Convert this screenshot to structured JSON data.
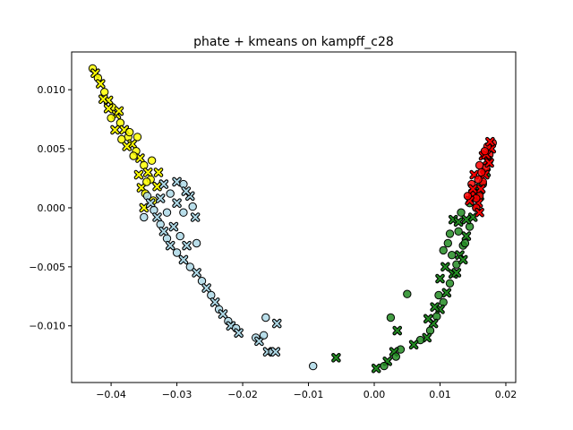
{
  "chart_data": {
    "type": "scatter",
    "title": "phate + kmeans on kampff_c28",
    "xlabel": "",
    "ylabel": "",
    "xlim": [
      -0.046,
      0.0215
    ],
    "ylim": [
      -0.0148,
      0.0132
    ],
    "x_ticks": [
      -0.04,
      -0.03,
      -0.02,
      -0.01,
      0.0,
      0.01,
      0.02
    ],
    "x_tick_labels": [
      "−0.04",
      "−0.03",
      "−0.02",
      "−0.01",
      "0.00",
      "0.01",
      "0.02"
    ],
    "y_ticks": [
      -0.01,
      -0.005,
      0.0,
      0.005,
      0.01
    ],
    "y_tick_labels": [
      "−0.010",
      "−0.005",
      "0.000",
      "0.005",
      "0.010"
    ],
    "grid": false,
    "legend": "none",
    "marker_styles": [
      "circle",
      "x"
    ],
    "series": [
      {
        "color": "#ffff00",
        "points": [
          [
            -0.0428,
            0.0118
          ],
          [
            -0.0424,
            0.0114
          ],
          [
            -0.042,
            0.011
          ],
          [
            -0.0416,
            0.0105
          ],
          [
            -0.041,
            0.0098
          ],
          [
            -0.0404,
            0.0091
          ],
          [
            -0.0398,
            0.0085
          ],
          [
            -0.0392,
            0.0079
          ],
          [
            -0.0386,
            0.0072
          ],
          [
            -0.038,
            0.0066
          ],
          [
            -0.0374,
            0.006
          ],
          [
            -0.0368,
            0.0054
          ],
          [
            -0.0362,
            0.0048
          ],
          [
            -0.0356,
            0.0042
          ],
          [
            -0.035,
            0.0036
          ],
          [
            -0.0344,
            0.003
          ],
          [
            -0.034,
            0.0024
          ],
          [
            -0.0354,
            0.0017
          ],
          [
            -0.0348,
            0.0012
          ],
          [
            -0.0376,
            0.0052
          ],
          [
            -0.0366,
            0.0044
          ],
          [
            -0.0394,
            0.0066
          ],
          [
            -0.0384,
            0.0058
          ],
          [
            -0.0328,
            0.003
          ],
          [
            -0.0338,
            0.004
          ],
          [
            -0.0404,
            0.0084
          ],
          [
            -0.0372,
            0.0064
          ],
          [
            -0.0358,
            0.0028
          ],
          [
            -0.0346,
            0.0022
          ],
          [
            -0.0412,
            0.0092
          ],
          [
            -0.04,
            0.0076
          ],
          [
            -0.0388,
            0.0082
          ],
          [
            -0.0336,
            0.0006
          ],
          [
            -0.035,
            0.0
          ],
          [
            -0.036,
            0.006
          ],
          [
            -0.033,
            0.0018
          ]
        ]
      },
      {
        "color": "#add8e6",
        "points": [
          [
            -0.0345,
            0.001
          ],
          [
            -0.034,
            0.0004
          ],
          [
            -0.0335,
            -0.0002
          ],
          [
            -0.033,
            -0.0008
          ],
          [
            -0.0325,
            -0.0014
          ],
          [
            -0.032,
            -0.002
          ],
          [
            -0.0315,
            -0.0026
          ],
          [
            -0.031,
            -0.0032
          ],
          [
            -0.03,
            -0.0038
          ],
          [
            -0.029,
            -0.0044
          ],
          [
            -0.028,
            -0.005
          ],
          [
            -0.027,
            -0.0055
          ],
          [
            -0.0262,
            -0.0062
          ],
          [
            -0.0255,
            -0.0068
          ],
          [
            -0.0248,
            -0.0074
          ],
          [
            -0.0242,
            -0.008
          ],
          [
            -0.0236,
            -0.0086
          ],
          [
            -0.023,
            -0.009
          ],
          [
            -0.0222,
            -0.0096
          ],
          [
            -0.0218,
            -0.01
          ],
          [
            -0.021,
            -0.0102
          ],
          [
            -0.0206,
            -0.0106
          ],
          [
            -0.018,
            -0.011
          ],
          [
            -0.0175,
            -0.0113
          ],
          [
            -0.0168,
            -0.0108
          ],
          [
            -0.0162,
            -0.0122
          ],
          [
            -0.0155,
            -0.0122
          ],
          [
            -0.015,
            -0.0122
          ],
          [
            -0.0165,
            -0.0093
          ],
          [
            -0.0148,
            -0.0098
          ],
          [
            -0.0093,
            -0.0134
          ],
          [
            -0.03,
            0.0022
          ],
          [
            -0.029,
            0.002
          ],
          [
            -0.028,
            0.001
          ],
          [
            -0.0276,
            0.0001
          ],
          [
            -0.0272,
            -0.0008
          ],
          [
            -0.027,
            -0.003
          ],
          [
            -0.032,
            0.002
          ],
          [
            -0.031,
            0.0012
          ],
          [
            -0.03,
            0.0004
          ],
          [
            -0.029,
            -0.0004
          ],
          [
            -0.0305,
            -0.0016
          ],
          [
            -0.0295,
            -0.0024
          ],
          [
            -0.0285,
            -0.0032
          ],
          [
            -0.035,
            -0.0008
          ],
          [
            -0.0325,
            0.0008
          ],
          [
            -0.0315,
            -0.0004
          ],
          [
            -0.0286,
            0.0014
          ]
        ]
      },
      {
        "color": "#228b22",
        "points": [
          [
            0.0175,
            0.004
          ],
          [
            0.017,
            0.003
          ],
          [
            0.0165,
            0.002
          ],
          [
            0.016,
            0.001
          ],
          [
            0.0155,
            0.0
          ],
          [
            0.015,
            -0.0008
          ],
          [
            0.0145,
            -0.0016
          ],
          [
            0.014,
            -0.0024
          ],
          [
            0.0135,
            -0.0032
          ],
          [
            0.013,
            -0.004
          ],
          [
            0.0125,
            -0.0048
          ],
          [
            0.012,
            -0.0056
          ],
          [
            0.0115,
            -0.0064
          ],
          [
            0.011,
            -0.0072
          ],
          [
            0.0105,
            -0.008
          ],
          [
            0.01,
            -0.0086
          ],
          [
            0.0095,
            -0.0092
          ],
          [
            0.009,
            -0.0098
          ],
          [
            0.0085,
            -0.0104
          ],
          [
            0.008,
            -0.011
          ],
          [
            0.007,
            -0.0112
          ],
          [
            0.006,
            -0.0116
          ],
          [
            0.004,
            -0.012
          ],
          [
            0.003,
            -0.0122
          ],
          [
            0.0025,
            -0.0093
          ],
          [
            0.0035,
            -0.0104
          ],
          [
            0.0033,
            -0.0126
          ],
          [
            0.002,
            -0.013
          ],
          [
            0.0015,
            -0.0134
          ],
          [
            0.0003,
            -0.0136
          ],
          [
            0.005,
            -0.0073
          ],
          [
            -0.0058,
            -0.0127
          ],
          [
            0.0128,
            -0.002
          ],
          [
            0.014,
            -0.001
          ],
          [
            0.0118,
            -0.004
          ],
          [
            0.0108,
            -0.005
          ],
          [
            0.0132,
            -0.0004
          ],
          [
            0.012,
            -0.001
          ],
          [
            0.0112,
            -0.003
          ],
          [
            0.01,
            -0.006
          ],
          [
            0.0145,
            0.0004
          ],
          [
            0.015,
            0.001
          ],
          [
            0.0138,
            -0.003
          ],
          [
            0.0125,
            -0.0055
          ],
          [
            0.0098,
            -0.0074
          ],
          [
            0.0092,
            -0.0084
          ],
          [
            0.0105,
            -0.0036
          ],
          [
            0.0082,
            -0.0094
          ],
          [
            0.016,
            0.0018
          ],
          [
            0.0128,
            -0.0012
          ],
          [
            0.0115,
            -0.0022
          ],
          [
            0.0135,
            -0.0044
          ]
        ]
      },
      {
        "color": "#ff0000",
        "points": [
          [
            0.018,
            0.0055
          ],
          [
            0.0178,
            0.005
          ],
          [
            0.0175,
            0.0045
          ],
          [
            0.0172,
            0.004
          ],
          [
            0.017,
            0.0034
          ],
          [
            0.0168,
            0.0028
          ],
          [
            0.0165,
            0.0022
          ],
          [
            0.0162,
            0.0016
          ],
          [
            0.016,
            0.001
          ],
          [
            0.0158,
            0.0004
          ],
          [
            0.0155,
            0.0
          ],
          [
            0.015,
            0.0012
          ],
          [
            0.0148,
            0.002
          ],
          [
            0.0152,
            0.0028
          ],
          [
            0.016,
            0.0036
          ],
          [
            0.0166,
            0.0044
          ],
          [
            0.0172,
            0.0052
          ],
          [
            0.0176,
            0.0056
          ],
          [
            0.0155,
            0.0008
          ],
          [
            0.0145,
            0.0006
          ],
          [
            0.0163,
            0.003
          ],
          [
            0.017,
            0.0045
          ],
          [
            0.0158,
            0.0024
          ],
          [
            0.015,
            0.0016
          ],
          [
            0.0168,
            0.0048
          ],
          [
            0.0175,
            0.0038
          ],
          [
            0.0142,
            0.001
          ],
          [
            0.016,
            -0.0004
          ]
        ]
      }
    ]
  }
}
